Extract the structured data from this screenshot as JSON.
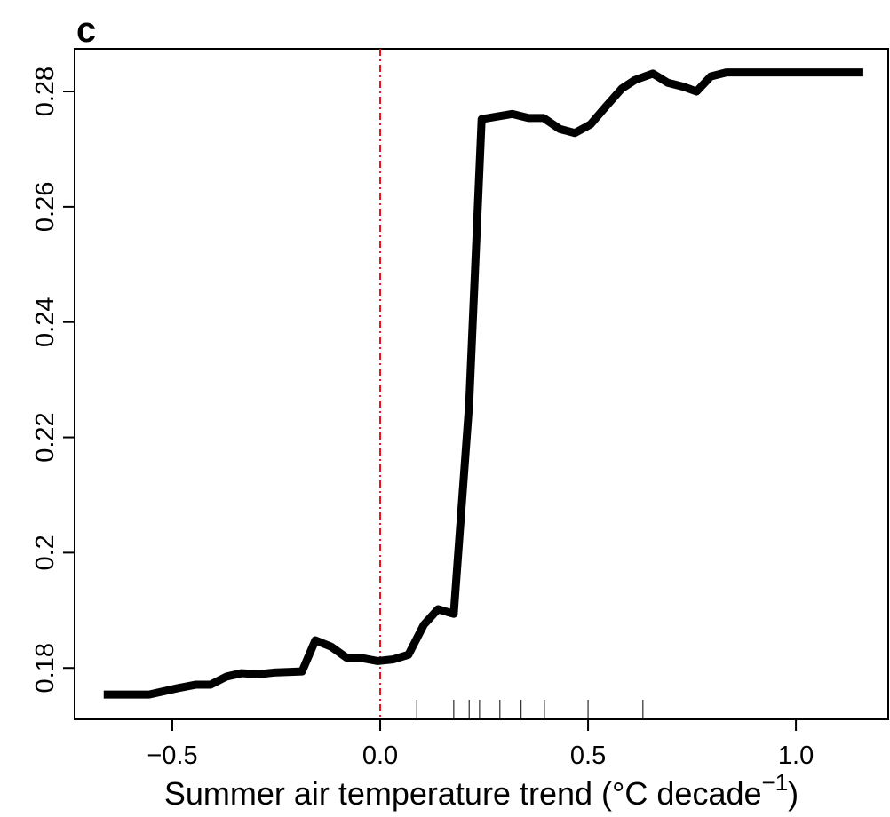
{
  "chart_data": {
    "type": "line",
    "title": "c",
    "xlabel": {
      "text": "Summer air temperature trend (°C decade",
      "superscript": "−1",
      "close": ")"
    },
    "x": [
      -0.665,
      -0.556,
      -0.487,
      -0.444,
      -0.408,
      -0.37,
      -0.333,
      -0.295,
      -0.256,
      -0.188,
      -0.156,
      -0.118,
      -0.081,
      -0.043,
      -0.006,
      0.032,
      0.068,
      0.105,
      0.139,
      0.177,
      0.214,
      0.244,
      0.318,
      0.357,
      0.393,
      0.432,
      0.468,
      0.506,
      0.543,
      0.581,
      0.613,
      0.656,
      0.692,
      0.731,
      0.761,
      0.795,
      0.833,
      1.162
    ],
    "series": [
      {
        "color": "#000000",
        "values": [
          0.1754,
          0.1754,
          0.1765,
          0.1771,
          0.1771,
          0.1785,
          0.1791,
          0.1789,
          0.1792,
          0.1794,
          0.1848,
          0.1837,
          0.1818,
          0.1817,
          0.1812,
          0.1815,
          0.1823,
          0.1875,
          0.1902,
          0.1894,
          0.2258,
          0.2752,
          0.2761,
          0.2754,
          0.2754,
          0.2735,
          0.2728,
          0.2743,
          0.2774,
          0.2805,
          0.282,
          0.2831,
          0.2815,
          0.2808,
          0.28,
          0.2826,
          0.2833,
          0.2833
        ]
      }
    ],
    "rug": [
      0.088,
      0.177,
      0.214,
      0.239,
      0.288,
      0.339,
      0.395,
      0.5,
      0.632
    ],
    "vline": {
      "value": 0,
      "color": "#e8101a"
    },
    "xlim": [
      -0.735,
      1.222
    ],
    "ylim": [
      0.1711,
      0.2874
    ],
    "xticks": [
      {
        "value": -0.5,
        "label": "−0.5"
      },
      {
        "value": 0,
        "label": "0.0"
      },
      0.5,
      {
        "value": 1,
        "label": "1.0"
      }
    ],
    "yticks": [
      0.18,
      0.2,
      0.22,
      0.24,
      0.26,
      0.28
    ]
  }
}
